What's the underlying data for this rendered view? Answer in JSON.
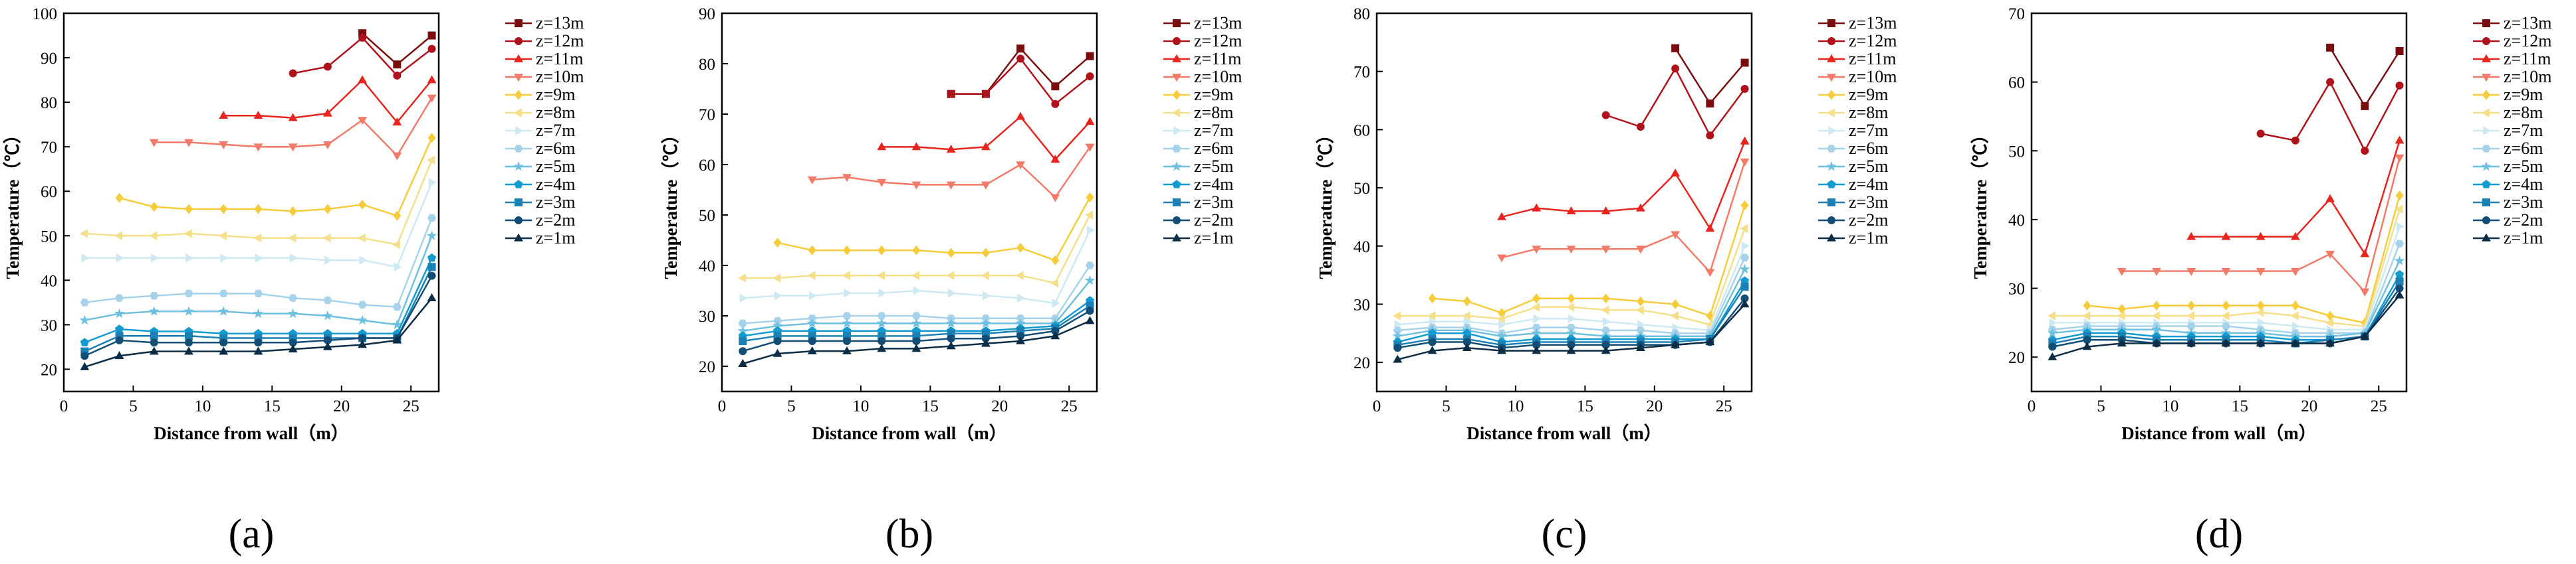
{
  "chart_data": [
    {
      "type": "line",
      "panel_label": "(a)",
      "xlabel": "Distance from wall（m）",
      "ylabel": "Temperature（℃）",
      "xlim": [
        0,
        27
      ],
      "ylim": [
        15,
        100
      ],
      "xticks": [
        0,
        5,
        10,
        15,
        20,
        25
      ],
      "yticks": [
        20,
        30,
        40,
        50,
        60,
        70,
        80,
        90,
        100
      ],
      "legend_position": "top-right",
      "x": [
        1.5,
        4,
        6.5,
        9,
        11.5,
        14,
        16.5,
        19,
        21.5,
        24,
        26.5
      ],
      "series": [
        {
          "name": "z=13m",
          "values": [
            null,
            null,
            null,
            null,
            null,
            null,
            null,
            null,
            95.5,
            88.5,
            95
          ]
        },
        {
          "name": "z=12m",
          "values": [
            null,
            null,
            null,
            null,
            null,
            null,
            86.5,
            88,
            94.5,
            86,
            92
          ]
        },
        {
          "name": "z=11m",
          "values": [
            null,
            null,
            null,
            null,
            77,
            77,
            76.5,
            77.5,
            85,
            75.5,
            85
          ]
        },
        {
          "name": "z=10m",
          "values": [
            null,
            null,
            71,
            71,
            70.5,
            70,
            70,
            70.5,
            76,
            68,
            81
          ]
        },
        {
          "name": "z=9m",
          "values": [
            null,
            58.5,
            56.5,
            56,
            56,
            56,
            55.5,
            56,
            57,
            54.5,
            72
          ]
        },
        {
          "name": "z=8m",
          "values": [
            50.5,
            50,
            50,
            50.5,
            50,
            49.5,
            49.5,
            49.5,
            49.5,
            48,
            67
          ]
        },
        {
          "name": "z=7m",
          "values": [
            45,
            45,
            45,
            45,
            45,
            45,
            45,
            44.5,
            44.5,
            43,
            62
          ]
        },
        {
          "name": "z=6m",
          "values": [
            35,
            36,
            36.5,
            37,
            37,
            37,
            36,
            35.5,
            34.5,
            34,
            54
          ]
        },
        {
          "name": "z=5m",
          "values": [
            31,
            32.5,
            33,
            33,
            33,
            32.5,
            32.5,
            32,
            31,
            30,
            50
          ]
        },
        {
          "name": "z=4m",
          "values": [
            26,
            29,
            28.5,
            28.5,
            28,
            28,
            28,
            28,
            28,
            28,
            45
          ]
        },
        {
          "name": "z=3m",
          "values": [
            24,
            27.5,
            27.5,
            27.5,
            27,
            27,
            27,
            27,
            27,
            27,
            43
          ]
        },
        {
          "name": "z=2m",
          "values": [
            23,
            26.5,
            26,
            26,
            26,
            26,
            26,
            26.5,
            27,
            27,
            41
          ]
        },
        {
          "name": "z=1m",
          "values": [
            20.5,
            23,
            24,
            24,
            24,
            24,
            24.5,
            25,
            25.5,
            26.5,
            36
          ]
        }
      ]
    },
    {
      "type": "line",
      "panel_label": "(b)",
      "xlabel": "Distance from wall（m）",
      "ylabel": "Temperature（℃）",
      "xlim": [
        0,
        27
      ],
      "ylim": [
        15,
        90
      ],
      "xticks": [
        0,
        5,
        10,
        15,
        20,
        25
      ],
      "yticks": [
        20,
        30,
        40,
        50,
        60,
        70,
        80,
        90
      ],
      "legend_position": "top-right",
      "x": [
        1.5,
        4,
        6.5,
        9,
        11.5,
        14,
        16.5,
        19,
        21.5,
        24,
        26.5
      ],
      "series": [
        {
          "name": "z=13m",
          "values": [
            null,
            null,
            null,
            null,
            null,
            null,
            74,
            74,
            83,
            75.5,
            81.5
          ]
        },
        {
          "name": "z=12m",
          "values": [
            null,
            null,
            null,
            null,
            null,
            null,
            74,
            74,
            81,
            72,
            77.5
          ]
        },
        {
          "name": "z=11m",
          "values": [
            null,
            null,
            null,
            null,
            63.5,
            63.5,
            63,
            63.5,
            69.5,
            61,
            68.5
          ]
        },
        {
          "name": "z=10m",
          "values": [
            null,
            null,
            57,
            57.5,
            56.5,
            56,
            56,
            56,
            60,
            53.5,
            63.5
          ]
        },
        {
          "name": "z=9m",
          "values": [
            null,
            44.5,
            43,
            43,
            43,
            43,
            42.5,
            42.5,
            43.5,
            41,
            53.5
          ]
        },
        {
          "name": "z=8m",
          "values": [
            37.5,
            37.5,
            38,
            38,
            38,
            38,
            38,
            38,
            38,
            36.5,
            50
          ]
        },
        {
          "name": "z=7m",
          "values": [
            33.5,
            34,
            34,
            34.5,
            34.5,
            35,
            34.5,
            34,
            33.5,
            32.5,
            47
          ]
        },
        {
          "name": "z=6m",
          "values": [
            28.5,
            29,
            29.5,
            30,
            30,
            30,
            29.5,
            29.5,
            29.5,
            29.5,
            40
          ]
        },
        {
          "name": "z=5m",
          "values": [
            27,
            28,
            28.5,
            28.5,
            28.5,
            28.5,
            28.5,
            28.5,
            28.5,
            28.5,
            37
          ]
        },
        {
          "name": "z=4m",
          "values": [
            26,
            27,
            27,
            27,
            27,
            27,
            27,
            27,
            27.5,
            28,
            33
          ]
        },
        {
          "name": "z=3m",
          "values": [
            25,
            26,
            26,
            26,
            26,
            26,
            26.5,
            26.5,
            27,
            27.5,
            32
          ]
        },
        {
          "name": "z=2m",
          "values": [
            23,
            25,
            25,
            25,
            25,
            25,
            25.5,
            25.5,
            26,
            27,
            31
          ]
        },
        {
          "name": "z=1m",
          "values": [
            20.5,
            22.5,
            23,
            23,
            23.5,
            23.5,
            24,
            24.5,
            25,
            26,
            29
          ]
        }
      ]
    },
    {
      "type": "line",
      "panel_label": "(c)",
      "xlabel": "Distance from wall（m）",
      "ylabel": "Temperature（℃）",
      "xlim": [
        0,
        27
      ],
      "ylim": [
        15,
        80
      ],
      "xticks": [
        0,
        5,
        10,
        15,
        20,
        25
      ],
      "yticks": [
        20,
        30,
        40,
        50,
        60,
        70,
        80
      ],
      "legend_position": "top-right",
      "x": [
        1.5,
        4,
        6.5,
        9,
        11.5,
        14,
        16.5,
        19,
        21.5,
        24,
        26.5
      ],
      "series": [
        {
          "name": "z=13m",
          "values": [
            null,
            null,
            null,
            null,
            null,
            null,
            null,
            null,
            74,
            64.5,
            71.5
          ]
        },
        {
          "name": "z=12m",
          "values": [
            null,
            null,
            null,
            null,
            null,
            null,
            62.5,
            60.5,
            70.5,
            59,
            67
          ]
        },
        {
          "name": "z=11m",
          "values": [
            null,
            null,
            null,
            45,
            46.5,
            46,
            46,
            46.5,
            52.5,
            43,
            58
          ]
        },
        {
          "name": "z=10m",
          "values": [
            null,
            null,
            null,
            38,
            39.5,
            39.5,
            39.5,
            39.5,
            42,
            35.5,
            54.5
          ]
        },
        {
          "name": "z=9m",
          "values": [
            null,
            31,
            30.5,
            28.5,
            31,
            31,
            31,
            30.5,
            30,
            28,
            47
          ]
        },
        {
          "name": "z=8m",
          "values": [
            28,
            28,
            28,
            27.5,
            29.5,
            29.5,
            29,
            29,
            28,
            26.5,
            43
          ]
        },
        {
          "name": "z=7m",
          "values": [
            26.5,
            27,
            27,
            26.5,
            27.5,
            27.5,
            27,
            26.5,
            26,
            25.5,
            40
          ]
        },
        {
          "name": "z=6m",
          "values": [
            25.5,
            26,
            26,
            25,
            26,
            26,
            25.5,
            25.5,
            25,
            25,
            38
          ]
        },
        {
          "name": "z=5m",
          "values": [
            24.5,
            25.5,
            25.5,
            24.5,
            25,
            25,
            24.5,
            24.5,
            24.5,
            24.5,
            36
          ]
        },
        {
          "name": "z=4m",
          "values": [
            23.5,
            25,
            25,
            23.5,
            24,
            24,
            24,
            24,
            24,
            24,
            34
          ]
        },
        {
          "name": "z=3m",
          "values": [
            23,
            24,
            24,
            23,
            23.5,
            23.5,
            23.5,
            23.5,
            23.5,
            24,
            33
          ]
        },
        {
          "name": "z=2m",
          "values": [
            22.5,
            23.5,
            23.5,
            22.5,
            23,
            23,
            23,
            23,
            23,
            23.5,
            31
          ]
        },
        {
          "name": "z=1m",
          "values": [
            20.5,
            22,
            22.5,
            22,
            22,
            22,
            22,
            22.5,
            23,
            23.5,
            30
          ]
        }
      ]
    },
    {
      "type": "line",
      "panel_label": "(d)",
      "xlabel": "Distance from wall（m）",
      "ylabel": "Temperature（℃）",
      "xlim": [
        0,
        27
      ],
      "ylim": [
        15,
        70
      ],
      "xticks": [
        0,
        5,
        10,
        15,
        20,
        25
      ],
      "yticks": [
        20,
        30,
        40,
        50,
        60,
        70
      ],
      "legend_position": "top-right",
      "x": [
        1.5,
        4,
        6.5,
        9,
        11.5,
        14,
        16.5,
        19,
        21.5,
        24,
        26.5
      ],
      "series": [
        {
          "name": "z=13m",
          "values": [
            null,
            null,
            null,
            null,
            null,
            null,
            null,
            null,
            65,
            56.5,
            64.5
          ]
        },
        {
          "name": "z=12m",
          "values": [
            null,
            null,
            null,
            null,
            null,
            null,
            52.5,
            51.5,
            60,
            50,
            59.5
          ]
        },
        {
          "name": "z=11m",
          "values": [
            null,
            null,
            null,
            null,
            37.5,
            37.5,
            37.5,
            37.5,
            43,
            35,
            51.5
          ]
        },
        {
          "name": "z=10m",
          "values": [
            null,
            null,
            32.5,
            32.5,
            32.5,
            32.5,
            32.5,
            32.5,
            35,
            29.5,
            49
          ]
        },
        {
          "name": "z=9m",
          "values": [
            null,
            27.5,
            27,
            27.5,
            27.5,
            27.5,
            27.5,
            27.5,
            26,
            25,
            43.5
          ]
        },
        {
          "name": "z=8m",
          "values": [
            26,
            26,
            26,
            26,
            26,
            26,
            26.5,
            26,
            25,
            24.5,
            41.5
          ]
        },
        {
          "name": "z=7m",
          "values": [
            25,
            25,
            25,
            25,
            25,
            25,
            25,
            24.5,
            24,
            24,
            39
          ]
        },
        {
          "name": "z=6m",
          "values": [
            24,
            24.5,
            24.5,
            24.5,
            24.5,
            24.5,
            24,
            23.5,
            23.5,
            23.5,
            36.5
          ]
        },
        {
          "name": "z=5m",
          "values": [
            23.5,
            24,
            24,
            24,
            23.5,
            23.5,
            23.5,
            23,
            23,
            23.5,
            34
          ]
        },
        {
          "name": "z=4m",
          "values": [
            22.5,
            23.5,
            23.5,
            23,
            23,
            23,
            23,
            22.5,
            22.5,
            23,
            32
          ]
        },
        {
          "name": "z=3m",
          "values": [
            22,
            23,
            23,
            22.5,
            22.5,
            22.5,
            22.5,
            22,
            22.5,
            23,
            31
          ]
        },
        {
          "name": "z=2m",
          "values": [
            21.5,
            22.5,
            22.5,
            22,
            22,
            22,
            22,
            22,
            22,
            23,
            30
          ]
        },
        {
          "name": "z=1m",
          "values": [
            20,
            21.5,
            22,
            22,
            22,
            22,
            22,
            22,
            22,
            23,
            29
          ]
        }
      ]
    }
  ],
  "legend_style": {
    "colors": [
      "#7a0e0e",
      "#b0121b",
      "#e8241e",
      "#f37a68",
      "#f7cc3b",
      "#f5df8a",
      "#cfe9f3",
      "#a7d3ea",
      "#6fc0df",
      "#129bd0",
      "#1b80b4",
      "#134e76",
      "#0c2d45"
    ],
    "markers": [
      "square",
      "circle",
      "triangle-up",
      "triangle-down",
      "diamond",
      "triangle-left",
      "triangle-right",
      "hexagon",
      "star",
      "pentagon",
      "square",
      "circle",
      "triangle-up"
    ]
  }
}
